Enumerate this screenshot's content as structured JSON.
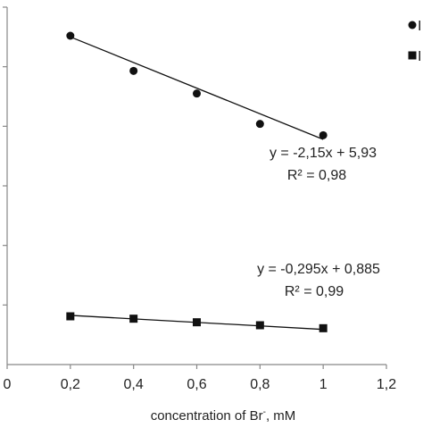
{
  "chart_data": {
    "type": "scatter",
    "xlabel_main": "concentration of Br",
    "xlabel_sup": "-",
    "xlabel_tail": ", mM",
    "xlim": [
      0,
      1.2
    ],
    "x_ticks": [
      {
        "value": 0,
        "label": "0"
      },
      {
        "value": 0.2,
        "label": "0,2"
      },
      {
        "value": 0.4,
        "label": "0,4"
      },
      {
        "value": 0.6,
        "label": "0,6"
      },
      {
        "value": 0.8,
        "label": "0,8"
      },
      {
        "value": 1.0,
        "label": "1"
      },
      {
        "value": 1.2,
        "label": "1,2"
      }
    ],
    "ylim": [
      0,
      6
    ],
    "y_tick_values": [
      1,
      2,
      3,
      4,
      5,
      6
    ],
    "grid": false,
    "legend_position": "top-right",
    "series": [
      {
        "name": "I",
        "marker": "circle",
        "x": [
          0.2,
          0.4,
          0.6,
          0.8,
          1.0
        ],
        "y": [
          5.52,
          4.93,
          4.55,
          4.04,
          3.85
        ],
        "trendline": {
          "slope": -2.15,
          "intercept": 5.93
        },
        "equation": "y = -2,15x + 5,93",
        "r2": "R² = 0,98"
      },
      {
        "name": "I",
        "marker": "square",
        "x": [
          0.2,
          0.4,
          0.6,
          0.8,
          1.0
        ],
        "y": [
          0.81,
          0.77,
          0.71,
          0.66,
          0.61
        ],
        "trendline": {
          "slope": -0.295,
          "intercept": 0.885
        },
        "equation": "y = -0,295x + 0,885",
        "r2": "R² = 0,99"
      }
    ],
    "colors": {
      "marks": "#111111",
      "axis": "#888888",
      "text": "#222222"
    }
  }
}
